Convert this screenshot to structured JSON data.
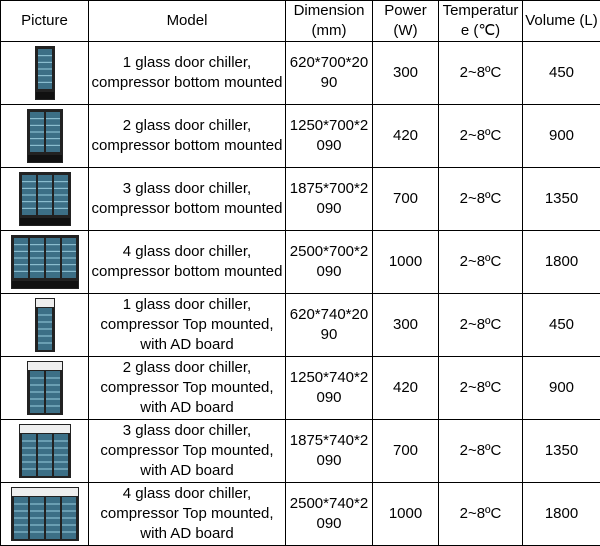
{
  "table": {
    "header": [
      "Picture",
      "Model",
      "Dimension (mm)",
      "Power (W)",
      "Temperature (℃)",
      "Volume (L)"
    ],
    "rows": [
      [
        "1 glass door chiller, compressor bottom mounted",
        "620*700*2090",
        300,
        "2~8ºC",
        450
      ],
      [
        "2 glass door chiller, compressor bottom mounted",
        "1250*700*2090",
        420,
        "2~8ºC",
        900
      ],
      [
        "3 glass door chiller, compressor bottom mounted",
        "1875*700*2090",
        700,
        "2~8ºC",
        1350
      ],
      [
        "4 glass door chiller, compressor bottom mounted",
        "2500*700*2090",
        1000,
        "2~8ºC",
        1800
      ],
      [
        "1 glass door chiller, compressor Top mounted, with AD board",
        "620*740*2090",
        300,
        "2~8ºC",
        450
      ],
      [
        "2 glass door chiller, compressor Top mounted, with AD board",
        "1250*740*2090",
        420,
        "2~8ºC",
        900
      ],
      [
        "3 glass door chiller, compressor Top mounted, with AD board",
        "1875*740*2090",
        700,
        "2~8ºC",
        1350
      ],
      [
        "4 glass door chiller, compressor Top mounted, with AD board",
        "2500*740*2090",
        1000,
        "2~8ºC",
        1800
      ]
    ]
  }
}
